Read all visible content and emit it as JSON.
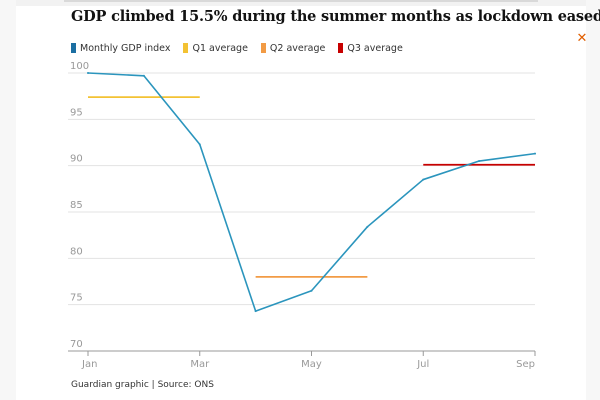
{
  "title": "GDP climbed 15.5% during the summer months as lockdown eased",
  "source": "Guardian graphic | Source: ONS",
  "close_icon": "close-icon",
  "chart_data": {
    "type": "line",
    "title": "GDP climbed 15.5% during the summer months as lockdown eased",
    "xlabel": "",
    "ylabel": "",
    "ylim": [
      70,
      100
    ],
    "yticks": [
      70,
      75,
      80,
      85,
      90,
      95,
      100
    ],
    "xlim": [
      1,
      9
    ],
    "x_tick_positions": [
      1,
      3,
      5,
      7,
      9
    ],
    "x_tick_labels": [
      "Jan",
      "Mar",
      "May",
      "Jul",
      "Sep"
    ],
    "grid": true,
    "legend": [
      {
        "name": "Monthly GDP index",
        "color": "#1c6fa2"
      },
      {
        "name": "Q1 average",
        "color": "#f3c233"
      },
      {
        "name": "Q2 average",
        "color": "#f29b45"
      },
      {
        "name": "Q3 average",
        "color": "#c70000"
      }
    ],
    "series": [
      {
        "name": "Monthly GDP index",
        "color": "#2b95bd",
        "x": [
          1,
          2,
          3,
          4,
          5,
          6,
          7,
          8,
          9
        ],
        "values": [
          100.0,
          99.7,
          92.3,
          74.3,
          76.5,
          83.4,
          88.5,
          90.5,
          91.3
        ]
      }
    ],
    "averages": [
      {
        "name": "Q1 average",
        "color": "#f3c233",
        "x_start": 1,
        "x_end": 3,
        "value": 97.4
      },
      {
        "name": "Q2 average",
        "color": "#f29b45",
        "x_start": 4,
        "x_end": 6,
        "value": 78.0
      },
      {
        "name": "Q3 average",
        "color": "#c70000",
        "x_start": 7,
        "x_end": 9,
        "value": 90.1
      }
    ]
  }
}
